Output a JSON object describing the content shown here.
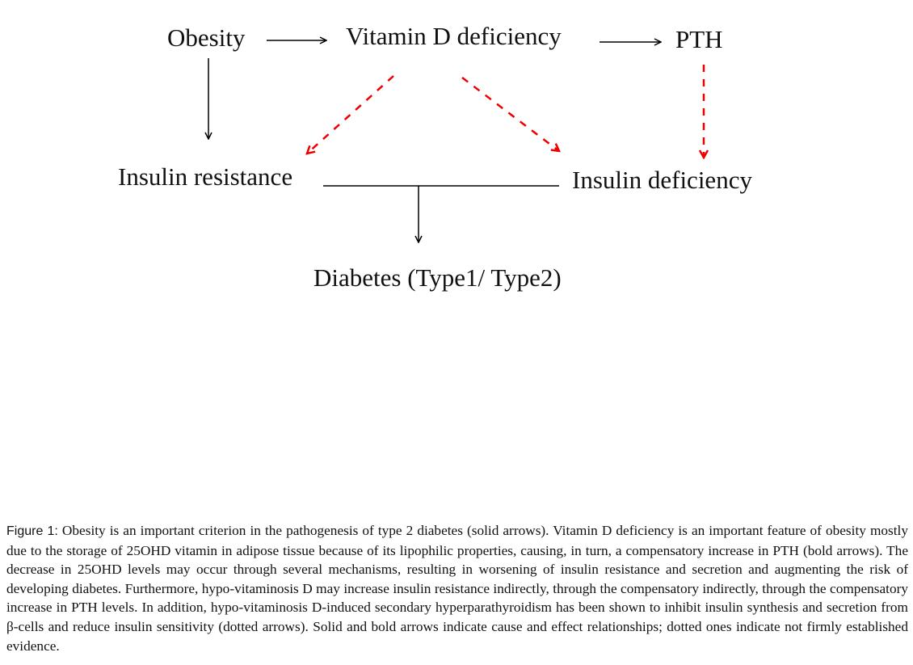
{
  "nodes": [
    {
      "label": "Obesity"
    },
    {
      "label": "Vitamin D deficiency"
    },
    {
      "label": "PTH"
    },
    {
      "label": "Insulin resistance"
    },
    {
      "label": "Insulin deficiency"
    },
    {
      "label": "Diabetes (Type1/ Type2)"
    }
  ],
  "caption": {
    "label": "Figure 1:",
    "text": "Obesity is an important criterion in the pathogenesis of type 2 diabetes (solid arrows). Vitamin D deficiency is an important feature of obesity mostly due to the storage of 25OHD vitamin in adipose tissue because of its lipophilic properties, causing, in turn, a compensatory increase in PTH (bold arrows). The decrease in 25OHD levels may occur through several mechanisms, resulting in worsening of insulin resistance and secretion and augmenting the risk of developing diabetes. Furthermore, hypo-vitaminosis D may increase insulin resistance indirectly, through the compensatory indirectly, through the compensatory increase in PTH levels. In addition, hypo-vitaminosis D-induced secondary hyperparathyroidism has been shown to inhibit insulin synthesis and secretion from β-cells and reduce insulin sensitivity (dotted arrows). Solid and bold arrows indicate cause and effect relationships; dotted ones indicate not firmly established evidence."
  }
}
